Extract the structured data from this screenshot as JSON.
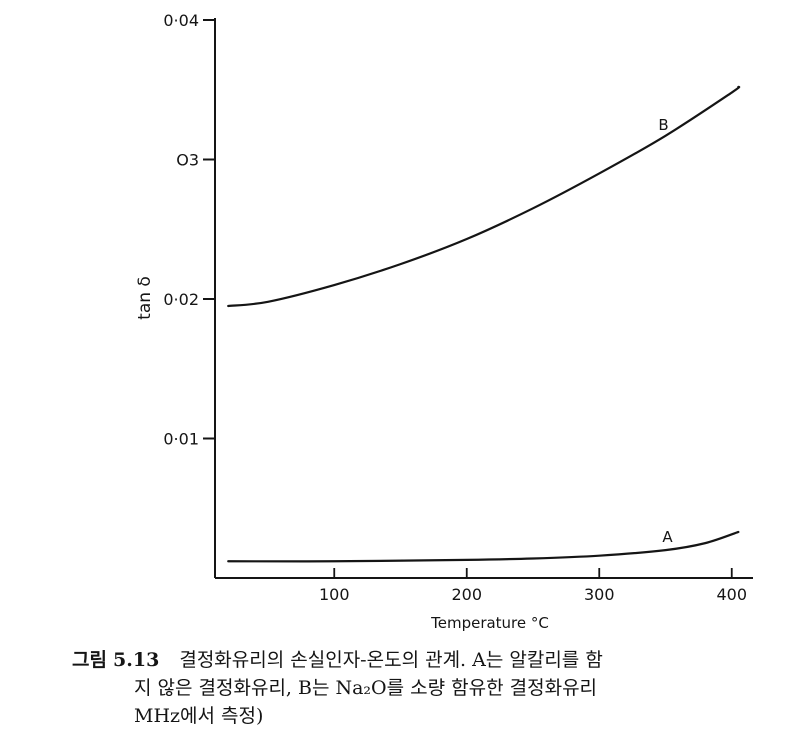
{
  "chart_data": {
    "type": "line",
    "xlabel": "Temperature °C",
    "ylabel": "tan δ",
    "xlim": [
      10,
      410
    ],
    "ylim": [
      0,
      0.04
    ],
    "x_ticks": [
      100,
      200,
      300,
      400
    ],
    "x_tick_labels": [
      "100",
      "200",
      "300",
      "400"
    ],
    "y_ticks": [
      0.01,
      0.02,
      0.03,
      0.04
    ],
    "y_tick_labels": [
      "0·01",
      "0·02",
      "O3",
      "0·04"
    ],
    "series": [
      {
        "name": "A",
        "x": [
          20,
          100,
          200,
          250,
          300,
          350,
          380,
          405
        ],
        "y": [
          0.0012,
          0.0012,
          0.0013,
          0.0014,
          0.0016,
          0.002,
          0.0025,
          0.0033
        ]
      },
      {
        "name": "B",
        "x": [
          20,
          50,
          100,
          150,
          200,
          250,
          300,
          350,
          400,
          405
        ],
        "y": [
          0.0195,
          0.0198,
          0.021,
          0.0225,
          0.0243,
          0.0265,
          0.029,
          0.0317,
          0.0348,
          0.0352
        ]
      }
    ],
    "grid": false,
    "legend": "none"
  },
  "caption": {
    "label": "그림",
    "number": "5.13",
    "line1": "결정화유리의 손실인자-온도의 관계. A는 알칼리를 함",
    "line2": "지 않은 결정화유리, B는 Na₂O를 소량 함유한 결정화유리",
    "line3": "MHz에서 측정)"
  }
}
